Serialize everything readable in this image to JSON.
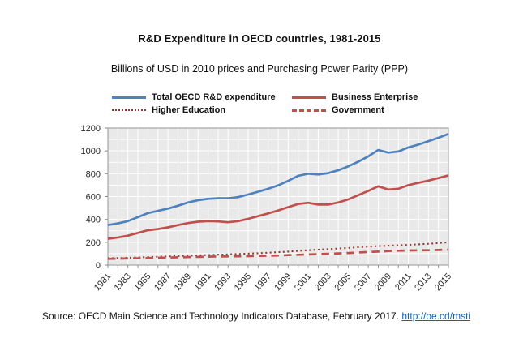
{
  "page": {
    "source_prefix": "Source: OECD Main Science and Technology Indicators Database, February 2017. ",
    "source_link": "http://oe.cd/msti",
    "link_color": "#0563c1"
  },
  "chart_data": {
    "type": "line",
    "title": "R&D Expenditure in OECD countries, 1981-2015",
    "subtitle": "Billions of USD in 2010 prices and Purchasing Power Parity (PPP)",
    "x": [
      1981,
      1982,
      1983,
      1984,
      1985,
      1986,
      1987,
      1988,
      1989,
      1990,
      1991,
      1992,
      1993,
      1994,
      1995,
      1996,
      1997,
      1998,
      1999,
      2000,
      2001,
      2002,
      2003,
      2004,
      2005,
      2006,
      2007,
      2008,
      2009,
      2010,
      2011,
      2012,
      2013,
      2014,
      2015
    ],
    "x_tick_step": 2,
    "x_tick_labels": [
      "1981",
      "1983",
      "1985",
      "1987",
      "1989",
      "1991",
      "1993",
      "1995",
      "1997",
      "1999",
      "2001",
      "2003",
      "2005",
      "2007",
      "2009",
      "2011",
      "2013",
      "2015"
    ],
    "ylim": [
      0,
      1200
    ],
    "ytick_step": 200,
    "y_tick_labels": [
      "0",
      "200",
      "400",
      "600",
      "800",
      "1000",
      "1200"
    ],
    "grid": true,
    "legend_position": "top",
    "plot_bg": "#e9e9e9",
    "grid_color": "#ffffff",
    "axis_color": "#a6a6a6",
    "tick_color": "#8c8c8c",
    "series": [
      {
        "name": "Total OECD R&D expenditure",
        "color": "#4f81bd",
        "style": "solid",
        "values": [
          350,
          365,
          385,
          420,
          455,
          475,
          495,
          520,
          548,
          568,
          580,
          585,
          585,
          595,
          618,
          642,
          668,
          698,
          738,
          782,
          800,
          793,
          805,
          830,
          865,
          905,
          952,
          1008,
          985,
          995,
          1030,
          1055,
          1085,
          1115,
          1148
        ]
      },
      {
        "name": "Business Enterprise",
        "color": "#c0504d",
        "style": "solid",
        "values": [
          230,
          242,
          258,
          282,
          305,
          315,
          330,
          350,
          368,
          380,
          385,
          382,
          375,
          385,
          405,
          428,
          452,
          478,
          508,
          535,
          545,
          530,
          530,
          548,
          575,
          612,
          650,
          690,
          662,
          668,
          700,
          720,
          740,
          762,
          785
        ]
      },
      {
        "name": "Higher Education",
        "color": "#953735",
        "style": "dotted",
        "values": [
          60,
          62,
          64,
          67,
          70,
          73,
          76,
          79,
          82,
          85,
          88,
          91,
          94,
          97,
          100,
          104,
          108,
          113,
          118,
          124,
          130,
          135,
          140,
          145,
          150,
          156,
          161,
          166,
          170,
          173,
          177,
          182,
          187,
          193,
          200
        ]
      },
      {
        "name": "Government",
        "color": "#c0504d",
        "style": "dashed",
        "values": [
          55,
          56,
          58,
          60,
          62,
          64,
          66,
          68,
          70,
          72,
          74,
          75,
          76,
          77,
          78,
          80,
          82,
          84,
          87,
          90,
          93,
          96,
          99,
          102,
          106,
          110,
          114,
          118,
          123,
          126,
          128,
          129,
          130,
          132,
          135
        ]
      }
    ]
  }
}
